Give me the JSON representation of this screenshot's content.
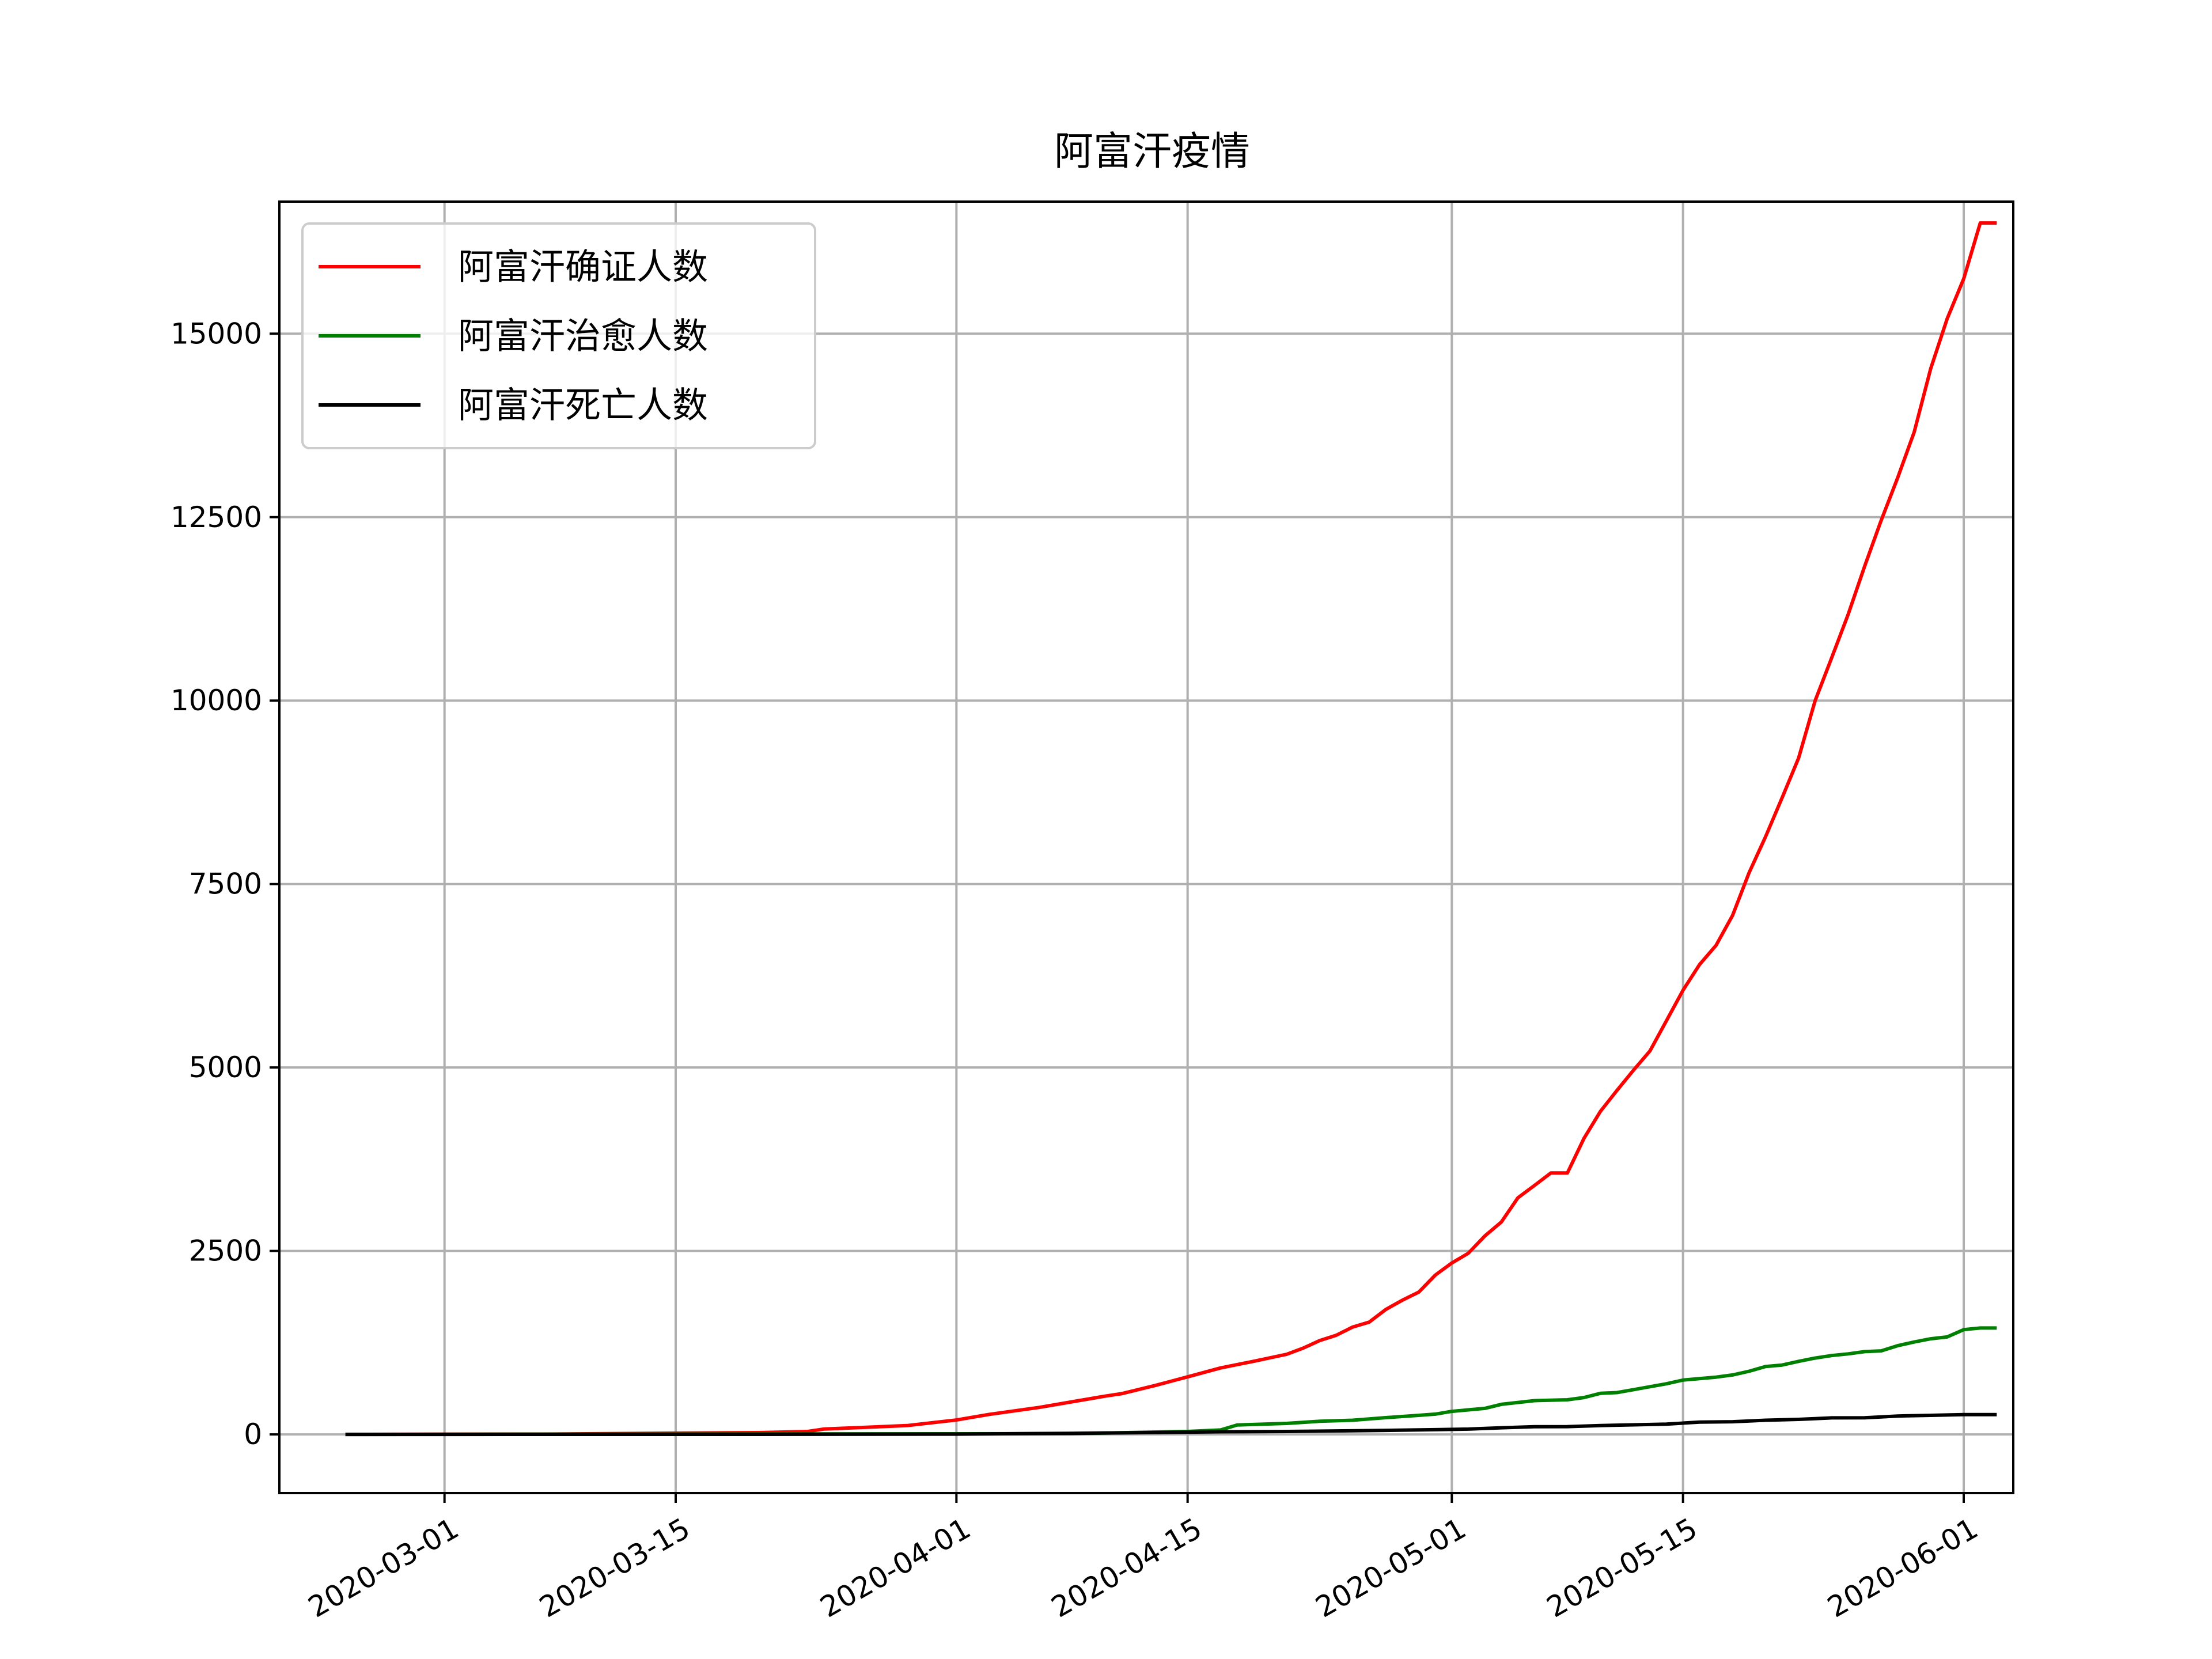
{
  "chart_data": {
    "type": "line",
    "title": "阿富汗疫情",
    "xlabel": "",
    "ylabel": "",
    "x_range": [
      "2020-02-20",
      "2020-06-04"
    ],
    "ylim": [
      -800,
      16800
    ],
    "grid": true,
    "legend_position": "top-left",
    "x_ticks": [
      "2020-03-01",
      "2020-03-15",
      "2020-04-01",
      "2020-04-15",
      "2020-05-01",
      "2020-05-15",
      "2020-06-01"
    ],
    "y_ticks": [
      0,
      2500,
      5000,
      7500,
      10000,
      12500,
      15000
    ],
    "series": [
      {
        "name": "阿富汗确证人数",
        "color": "#ff0000",
        "points": [
          [
            "2020-02-24",
            1
          ],
          [
            "2020-03-07",
            4
          ],
          [
            "2020-03-14",
            16
          ],
          [
            "2020-03-20",
            24
          ],
          [
            "2020-03-23",
            40
          ],
          [
            "2020-03-24",
            74
          ],
          [
            "2020-03-29",
            120
          ],
          [
            "2020-04-01",
            196
          ],
          [
            "2020-04-03",
            273
          ],
          [
            "2020-04-06",
            367
          ],
          [
            "2020-04-08",
            444
          ],
          [
            "2020-04-10",
            521
          ],
          [
            "2020-04-11",
            555
          ],
          [
            "2020-04-13",
            665
          ],
          [
            "2020-04-15",
            784
          ],
          [
            "2020-04-17",
            906
          ],
          [
            "2020-04-19",
            996
          ],
          [
            "2020-04-21",
            1092
          ],
          [
            "2020-04-22",
            1176
          ],
          [
            "2020-04-23",
            1279
          ],
          [
            "2020-04-24",
            1351
          ],
          [
            "2020-04-25",
            1463
          ],
          [
            "2020-04-26",
            1531
          ],
          [
            "2020-04-27",
            1703
          ],
          [
            "2020-04-28",
            1828
          ],
          [
            "2020-04-29",
            1939
          ],
          [
            "2020-04-30",
            2171
          ],
          [
            "2020-05-01",
            2335
          ],
          [
            "2020-05-02",
            2469
          ],
          [
            "2020-05-03",
            2704
          ],
          [
            "2020-05-04",
            2894
          ],
          [
            "2020-05-05",
            3224
          ],
          [
            "2020-05-06",
            3392
          ],
          [
            "2020-05-07",
            3563
          ],
          [
            "2020-05-08",
            3563
          ],
          [
            "2020-05-09",
            4033
          ],
          [
            "2020-05-10",
            4402
          ],
          [
            "2020-05-11",
            4687
          ],
          [
            "2020-05-12",
            4963
          ],
          [
            "2020-05-13",
            5226
          ],
          [
            "2020-05-14",
            5639
          ],
          [
            "2020-05-15",
            6053
          ],
          [
            "2020-05-16",
            6402
          ],
          [
            "2020-05-17",
            6664
          ],
          [
            "2020-05-18",
            7072
          ],
          [
            "2020-05-19",
            7653
          ],
          [
            "2020-05-20",
            8145
          ],
          [
            "2020-05-21",
            8676
          ],
          [
            "2020-05-22",
            9216
          ],
          [
            "2020-05-23",
            9998
          ],
          [
            "2020-05-24",
            10582
          ],
          [
            "2020-05-25",
            11173
          ],
          [
            "2020-05-26",
            11831
          ],
          [
            "2020-05-27",
            12456
          ],
          [
            "2020-05-28",
            13036
          ],
          [
            "2020-05-29",
            13659
          ],
          [
            "2020-05-30",
            14525
          ],
          [
            "2020-05-31",
            15205
          ],
          [
            "2020-06-01",
            15750
          ],
          [
            "2020-06-02",
            16509
          ],
          [
            "2020-06-03",
            16509
          ]
        ]
      },
      {
        "name": "阿富汗治愈人数",
        "color": "#008000",
        "points": [
          [
            "2020-02-24",
            0
          ],
          [
            "2020-04-08",
            10
          ],
          [
            "2020-04-15",
            40
          ],
          [
            "2020-04-17",
            60
          ],
          [
            "2020-04-18",
            128
          ],
          [
            "2020-04-21",
            150
          ],
          [
            "2020-04-23",
            179
          ],
          [
            "2020-04-25",
            193
          ],
          [
            "2020-04-27",
            228
          ],
          [
            "2020-04-29",
            260
          ],
          [
            "2020-04-30",
            276
          ],
          [
            "2020-05-01",
            314
          ],
          [
            "2020-05-03",
            355
          ],
          [
            "2020-05-04",
            410
          ],
          [
            "2020-05-06",
            460
          ],
          [
            "2020-05-08",
            472
          ],
          [
            "2020-05-09",
            502
          ],
          [
            "2020-05-10",
            560
          ],
          [
            "2020-05-11",
            570
          ],
          [
            "2020-05-12",
            610
          ],
          [
            "2020-05-13",
            650
          ],
          [
            "2020-05-14",
            690
          ],
          [
            "2020-05-15",
            740
          ],
          [
            "2020-05-16",
            760
          ],
          [
            "2020-05-17",
            780
          ],
          [
            "2020-05-18",
            810
          ],
          [
            "2020-05-19",
            860
          ],
          [
            "2020-05-20",
            925
          ],
          [
            "2020-05-21",
            945
          ],
          [
            "2020-05-22",
            995
          ],
          [
            "2020-05-23",
            1040
          ],
          [
            "2020-05-24",
            1075
          ],
          [
            "2020-05-25",
            1097
          ],
          [
            "2020-05-26",
            1128
          ],
          [
            "2020-05-27",
            1138
          ],
          [
            "2020-05-28",
            1209
          ],
          [
            "2020-05-29",
            1259
          ],
          [
            "2020-05-30",
            1303
          ],
          [
            "2020-05-31",
            1328
          ],
          [
            "2020-06-01",
            1428
          ],
          [
            "2020-06-02",
            1450
          ],
          [
            "2020-06-03",
            1450
          ]
        ]
      },
      {
        "name": "阿富汗死亡人数",
        "color": "#000000",
        "points": [
          [
            "2020-02-24",
            0
          ],
          [
            "2020-03-20",
            1
          ],
          [
            "2020-04-01",
            4
          ],
          [
            "2020-04-08",
            15
          ],
          [
            "2020-04-13",
            25
          ],
          [
            "2020-04-17",
            36
          ],
          [
            "2020-04-21",
            40
          ],
          [
            "2020-04-24",
            47
          ],
          [
            "2020-04-27",
            55
          ],
          [
            "2020-04-30",
            64
          ],
          [
            "2020-05-02",
            72
          ],
          [
            "2020-05-04",
            90
          ],
          [
            "2020-05-06",
            104
          ],
          [
            "2020-05-08",
            106
          ],
          [
            "2020-05-10",
            121
          ],
          [
            "2020-05-12",
            130
          ],
          [
            "2020-05-14",
            140
          ],
          [
            "2020-05-16",
            168
          ],
          [
            "2020-05-18",
            173
          ],
          [
            "2020-05-20",
            193
          ],
          [
            "2020-05-22",
            205
          ],
          [
            "2020-05-24",
            225
          ],
          [
            "2020-05-26",
            227
          ],
          [
            "2020-05-28",
            250
          ],
          [
            "2020-05-30",
            260
          ],
          [
            "2020-06-01",
            269
          ],
          [
            "2020-06-03",
            270
          ]
        ]
      }
    ]
  }
}
